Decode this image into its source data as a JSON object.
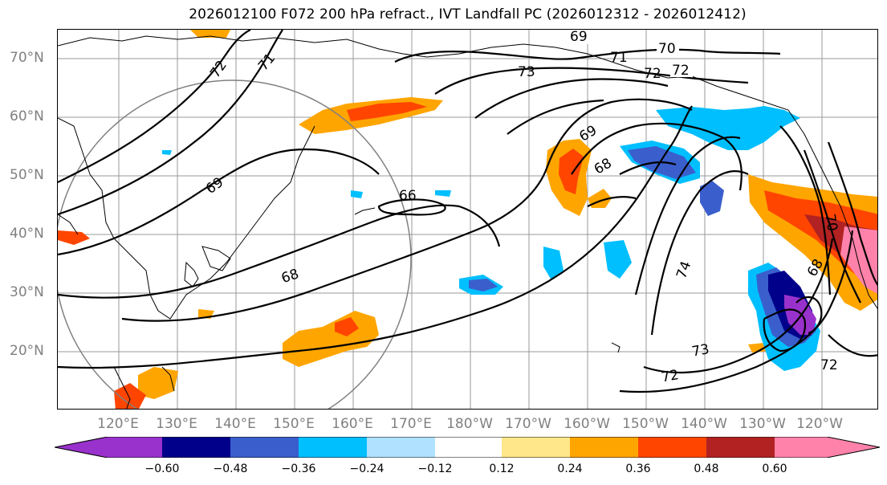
{
  "title": "2026012100 F072 200 hPa refract., IVT Landfall PC (2026012312 - 2026012412)",
  "lat_labels": [
    "70°N",
    "60°N",
    "50°N",
    "40°N",
    "30°N",
    "20°N"
  ],
  "lon_labels": [
    "120°E",
    "130°E",
    "140°E",
    "150°E",
    "160°E",
    "170°E",
    "180°W",
    "170°W",
    "160°W",
    "150°W",
    "140°W",
    "130°W",
    "120°W"
  ],
  "contour_labels": [
    "69",
    "70",
    "71",
    "72",
    "73",
    "72",
    "71",
    "72",
    "69",
    "66",
    "68",
    "68",
    "69",
    "74",
    "73",
    "72",
    "72",
    "70",
    "68"
  ],
  "colorbar": {
    "ticks": [
      "−0.60",
      "−0.48",
      "−0.36",
      "−0.24",
      "−0.12",
      "0.12",
      "0.24",
      "0.36",
      "0.48",
      "0.60"
    ],
    "colors": [
      "#9932cc",
      "#00008b",
      "#3a5fcd",
      "#00bfff",
      "#b0e2ff",
      "#ffffff",
      "#ffe78a",
      "#ffa500",
      "#ff4500",
      "#b22222",
      "#ff82ab"
    ]
  }
}
